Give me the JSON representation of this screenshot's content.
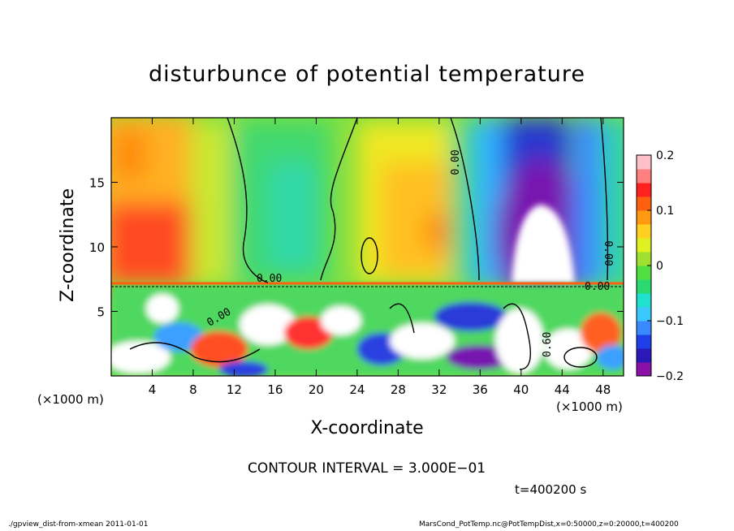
{
  "chart_data": {
    "type": "heatmap",
    "title": "disturbunce of potential temperature",
    "xlabel": "X-coordinate",
    "ylabel": "Z-coordinate",
    "x_unit_left": "(×1000 m)",
    "x_unit_right": "(×1000 m)",
    "xlim": [
      0,
      50
    ],
    "ylim": [
      0,
      20
    ],
    "x_ticks": [
      4,
      8,
      12,
      16,
      20,
      24,
      28,
      32,
      36,
      40,
      44,
      48
    ],
    "y_ticks": [
      5,
      10,
      15
    ],
    "colorbar": {
      "range": [
        -0.2,
        0.2
      ],
      "ticks": [
        0.2,
        0.1,
        0,
        -0.1,
        -0.2
      ],
      "tick_labels": [
        "0.2",
        "0.1",
        "0",
        "−0.1",
        "−0.2"
      ],
      "colors": [
        "#8a10a8",
        "#2a18b8",
        "#1e3ee8",
        "#3a8aff",
        "#3ac8ff",
        "#20e0d0",
        "#2cd870",
        "#50e040",
        "#a0e030",
        "#e0f020",
        "#ffd020",
        "#ff9a10",
        "#ff6010",
        "#ff2020",
        "#ff8080",
        "#ffc0c8"
      ]
    },
    "contour_labels": [
      "0.00",
      "0.00",
      "0.00",
      "0.00",
      "0.00",
      "0.60"
    ],
    "contour_interval": "CONTOUR INTERVAL = 3.000E−01",
    "time_label": "t=400200 s"
  },
  "footer": {
    "left": "./gpview_dist-from-xmean  2011-01-01",
    "right": "MarsCond_PotTemp.nc@PotTempDist,x=0:50000,z=0:20000,t=400200"
  }
}
